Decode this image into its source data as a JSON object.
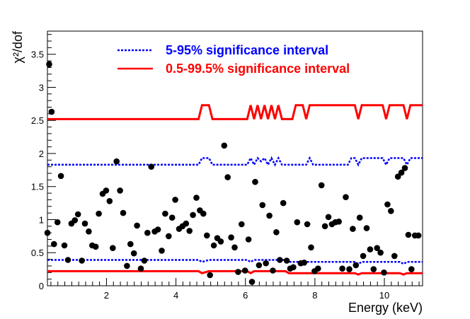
{
  "chart_data": {
    "type": "scatter",
    "title": "",
    "xlabel": "Energy (keV)",
    "ylabel": "χ²/dof",
    "xlim": [
      0.3,
      11.1
    ],
    "ylim": [
      0,
      3.85
    ],
    "x_ticks": [
      2,
      4,
      6,
      8,
      10
    ],
    "x_tick_labels": [
      "2",
      "4",
      "6",
      "8",
      "10"
    ],
    "y_ticks": [
      0,
      0.5,
      1,
      1.5,
      2,
      2.5,
      3,
      3.5
    ],
    "y_tick_labels": [
      "0",
      "0.5",
      "1",
      "1.5",
      "2",
      "2.5",
      "3",
      "3.5"
    ],
    "grid": false,
    "legend_position": "top-center",
    "legend": [
      {
        "label": "5-95% significance interval",
        "color": "#0000ff",
        "style": "dotted"
      },
      {
        "label": "0.5-99.5% significance interval",
        "color": "#ff0000",
        "style": "solid"
      }
    ],
    "series": [
      {
        "name": "data",
        "kind": "points",
        "color": "#000000",
        "x": [
          0.3,
          0.35,
          0.42,
          0.49,
          0.59,
          0.69,
          0.79,
          0.89,
          0.99,
          1.09,
          1.18,
          1.29,
          1.38,
          1.49,
          1.59,
          1.69,
          1.78,
          1.89,
          1.99,
          2.09,
          2.18,
          2.29,
          2.39,
          2.48,
          2.59,
          2.69,
          2.79,
          2.88,
          2.99,
          3.09,
          3.18,
          3.29,
          3.39,
          3.48,
          3.59,
          3.69,
          3.79,
          3.89,
          3.98,
          4.09,
          4.19,
          4.29,
          4.39,
          4.49,
          4.59,
          4.69,
          4.79,
          4.89,
          4.98,
          5.09,
          5.19,
          5.29,
          5.39,
          5.49,
          5.59,
          5.69,
          5.79,
          5.89,
          5.99,
          6.09,
          6.19,
          6.28,
          6.39,
          6.49,
          6.59,
          6.69,
          6.79,
          6.89,
          6.99,
          7.09,
          7.19,
          7.29,
          7.38,
          7.49,
          7.59,
          7.69,
          7.78,
          7.89,
          7.99,
          8.09,
          8.19,
          8.29,
          8.39,
          8.49,
          8.59,
          8.69,
          8.79,
          8.89,
          8.99,
          9.09,
          9.18,
          9.29,
          9.39,
          9.49,
          9.59,
          9.69,
          9.79,
          9.89,
          9.99,
          10.09,
          10.19,
          10.29,
          10.39,
          10.49,
          10.59,
          10.69,
          10.78,
          10.88,
          10.98
        ],
        "y": [
          0.8,
          3.35,
          2.63,
          0.63,
          0.96,
          1.66,
          0.61,
          0.39,
          0.94,
          0.99,
          1.08,
          0.38,
          0.94,
          0.82,
          0.61,
          0.59,
          1.09,
          1.39,
          1.44,
          1.28,
          0.57,
          1.88,
          1.44,
          1.1,
          0.3,
          0.63,
          0.49,
          0.91,
          0.26,
          0.38,
          0.8,
          1.8,
          0.82,
          0.85,
          0.53,
          1.09,
          0.75,
          1.03,
          1.3,
          0.86,
          0.9,
          0.94,
          0.83,
          1.07,
          1.33,
          1.14,
          1.09,
          0.76,
          0.16,
          0.61,
          0.72,
          0.67,
          2.12,
          1.64,
          0.73,
          0.58,
          0.21,
          0.93,
          0.23,
          0.7,
          0.06,
          1.57,
          0.31,
          1.22,
          0.34,
          1.06,
          0.23,
          0.81,
          0.39,
          1.25,
          0.38,
          0.26,
          0.28,
          0.96,
          0.34,
          0.35,
          0.93,
          0.58,
          0.22,
          0.26,
          1.52,
          0.9,
          1.04,
          0.93,
          0.96,
          0.97,
          0.26,
          1.34,
          0.25,
          0.86,
          0.31,
          1.03,
          0.45,
          0.87,
          0.55,
          0.25,
          0.57,
          0.5,
          0.2,
          1.23,
          1.13,
          0.45,
          1.65,
          1.71,
          1.78,
          0.77,
          0.25,
          0.76,
          0.76
        ]
      },
      {
        "name": "0.5-99.5% upper",
        "kind": "line",
        "style": "solid",
        "color": "#ff0000",
        "x": [
          0.3,
          4.65,
          4.75,
          4.95,
          5.05,
          6.05,
          6.15,
          6.25,
          6.35,
          6.45,
          6.55,
          6.65,
          6.75,
          6.85,
          6.95,
          7.05,
          7.35,
          7.45,
          7.65,
          7.75,
          7.85,
          9.15,
          9.25,
          9.35,
          9.95,
          10.05,
          10.15,
          10.55,
          10.65,
          10.75,
          11.1
        ],
        "y": [
          2.52,
          2.52,
          2.73,
          2.73,
          2.52,
          2.52,
          2.73,
          2.52,
          2.73,
          2.52,
          2.73,
          2.52,
          2.73,
          2.52,
          2.73,
          2.52,
          2.52,
          2.73,
          2.73,
          2.52,
          2.73,
          2.73,
          2.52,
          2.73,
          2.73,
          2.52,
          2.73,
          2.73,
          2.52,
          2.73,
          2.73
        ]
      },
      {
        "name": "5-95% upper",
        "kind": "line",
        "style": "dotted",
        "color": "#0000ff",
        "x": [
          0.3,
          4.65,
          4.75,
          4.95,
          5.05,
          6.05,
          6.15,
          6.25,
          6.35,
          6.45,
          6.55,
          6.65,
          6.75,
          6.85,
          6.95,
          7.05,
          7.75,
          7.85,
          7.95,
          8.05,
          8.95,
          9.05,
          9.15,
          9.25,
          9.35,
          9.95,
          10.05,
          10.15,
          10.55,
          10.65,
          10.75,
          11.1
        ],
        "y": [
          1.83,
          1.83,
          1.93,
          1.93,
          1.83,
          1.83,
          1.93,
          1.83,
          1.93,
          1.88,
          1.93,
          1.83,
          1.93,
          1.83,
          1.93,
          1.83,
          1.83,
          1.93,
          1.83,
          1.83,
          1.83,
          1.93,
          1.93,
          1.83,
          1.93,
          1.93,
          1.83,
          1.93,
          1.93,
          1.83,
          1.93,
          1.93
        ]
      },
      {
        "name": "5-95% lower",
        "kind": "line",
        "style": "dotted",
        "color": "#0000ff",
        "x": [
          0.3,
          4.65,
          4.75,
          4.95,
          5.05,
          6.05,
          6.15,
          6.25,
          7.15,
          7.25,
          9.15,
          9.25,
          9.35,
          10.45,
          10.55,
          10.65,
          11.1
        ],
        "y": [
          0.39,
          0.39,
          0.36,
          0.39,
          0.39,
          0.39,
          0.36,
          0.39,
          0.39,
          0.36,
          0.36,
          0.33,
          0.36,
          0.36,
          0.33,
          0.36,
          0.36
        ]
      },
      {
        "name": "0.5-99.5% lower",
        "kind": "line",
        "style": "solid",
        "color": "#ff0000",
        "x": [
          0.3,
          4.65,
          4.75,
          4.95,
          5.05,
          6.05,
          6.15,
          6.25,
          7.15,
          7.25,
          9.15,
          9.25,
          9.35,
          10.45,
          10.55,
          10.65,
          11.1
        ],
        "y": [
          0.22,
          0.22,
          0.19,
          0.22,
          0.22,
          0.22,
          0.19,
          0.22,
          0.22,
          0.19,
          0.19,
          0.17,
          0.19,
          0.19,
          0.17,
          0.19,
          0.19
        ]
      }
    ]
  }
}
